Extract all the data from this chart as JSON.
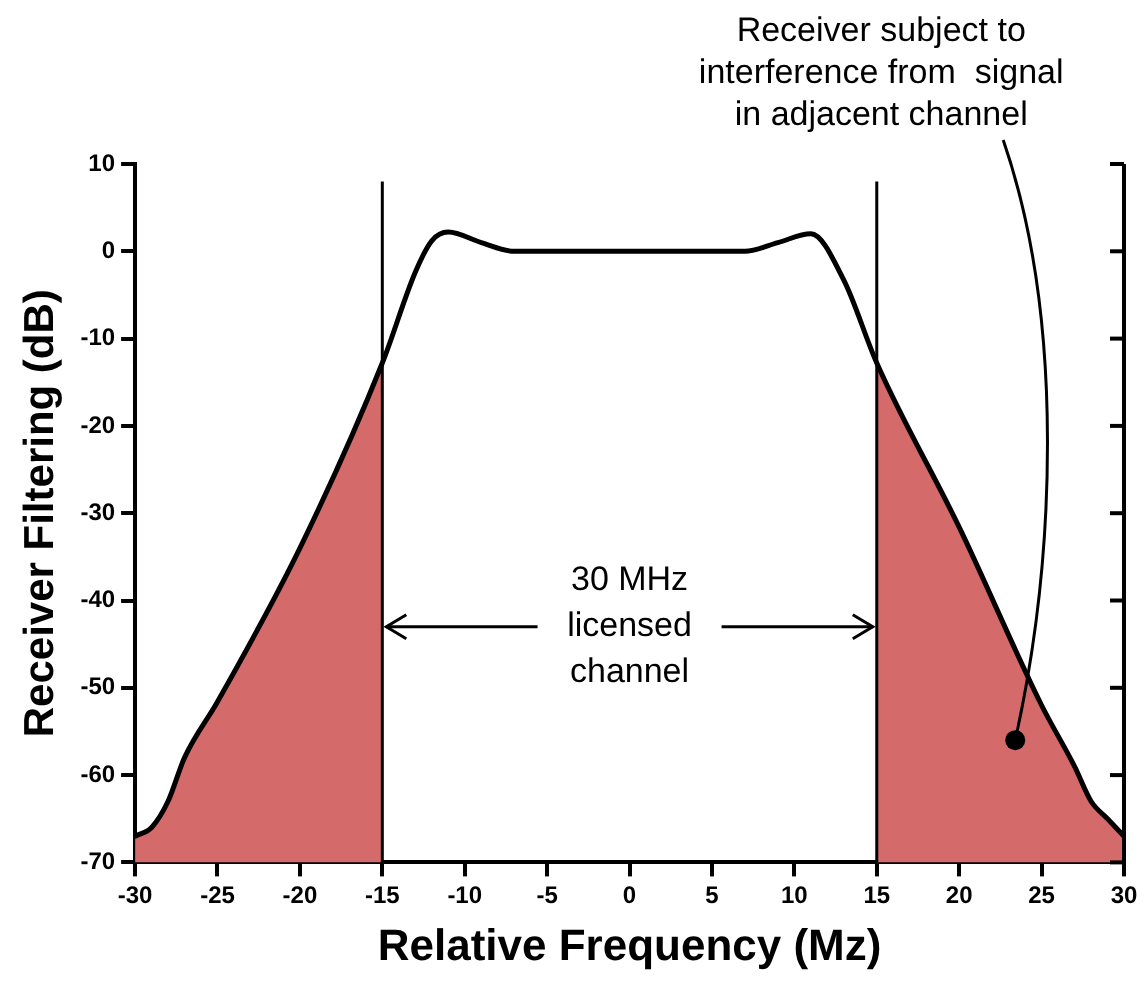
{
  "chart_data": {
    "type": "line",
    "xlabel": "Relative Frequency (Mz)",
    "ylabel": "Receiver Filtering (dB)",
    "x": [
      -30,
      -29,
      -28,
      -27,
      -25,
      -20,
      -15,
      -13,
      -12,
      -11,
      -9,
      -7,
      7,
      9,
      11,
      13,
      15,
      20,
      25,
      27,
      28,
      29,
      30
    ],
    "series": [
      {
        "color": "#000000",
        "values": [
          -67,
          -66,
          -63,
          -58,
          -51.6,
          -34,
          -12.8,
          -2.4,
          1.2,
          2.2,
          1,
          0,
          0,
          1,
          2,
          -3.3,
          -12.8,
          -31.6,
          -52,
          -59,
          -63,
          -65,
          -67
        ]
      }
    ],
    "xlim": [
      -30,
      30
    ],
    "ylim": [
      -70,
      10
    ],
    "xticks": [
      -30,
      -25,
      -20,
      -15,
      -10,
      -5,
      0,
      5,
      10,
      15,
      20,
      25,
      30
    ],
    "yticks": [
      -70,
      -60,
      -50,
      -40,
      -30,
      -20,
      -10,
      0,
      10
    ],
    "ref_lines": [
      {
        "axis": "x",
        "value": -15,
        "color": "#000000"
      },
      {
        "axis": "x",
        "value": 15,
        "color": "#000000"
      }
    ],
    "bands": [
      {
        "axis": "x",
        "from": -30,
        "to": -15,
        "color": "#d46a6a"
      },
      {
        "axis": "x",
        "from": 15,
        "to": 30,
        "color": "#d46a6a"
      }
    ],
    "annotations": [
      {
        "text": "30 MHz\nlicensed\nchannel",
        "x": 15,
        "y": -43
      },
      {
        "text": "Receiver subject to\ninterference from  signal\nin adjacent channel",
        "x": 23.4,
        "y": -56
      }
    ],
    "grid": false,
    "legend": false,
    "marker": "none",
    "line_style": "solid"
  }
}
